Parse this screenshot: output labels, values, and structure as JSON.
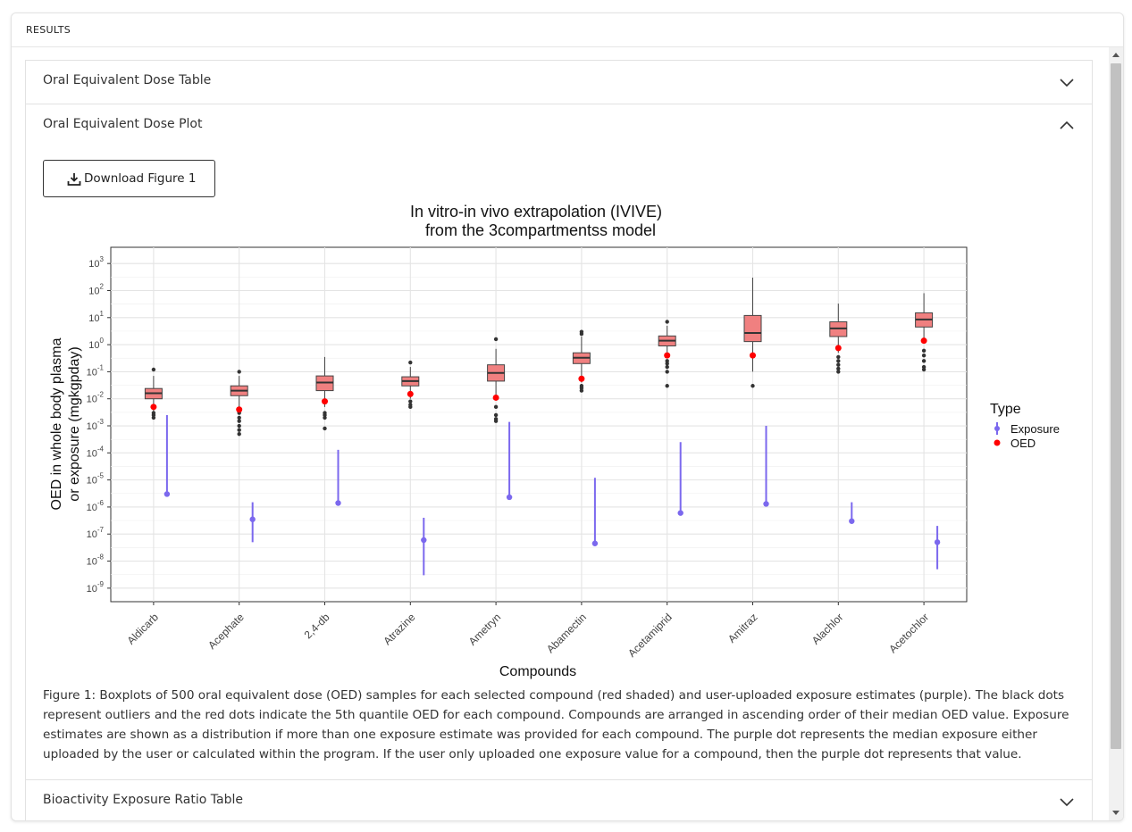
{
  "panel": {
    "title": "RESULTS"
  },
  "accordion": {
    "item1": "Oral Equivalent Dose Table",
    "item2": "Oral Equivalent Dose Plot",
    "item3": "Bioactivity Exposure Ratio Table"
  },
  "download": {
    "label": "Download Figure 1",
    "icon": "download-icon"
  },
  "caption": "Figure 1: Boxplots of 500 oral equivalent dose (OED) samples for each selected compound (red shaded) and user-uploaded exposure estimates (purple). The black dots represent outliers and the red dots indicate the 5th quantile OED for each compound. Compounds are arranged in ascending order of their median OED value. Exposure estimates are shown as a distribution if more than one exposure estimate was provided for each compound. The purple dot represents the median exposure either uploaded by the user or calculated within the program. If the user only uploaded one exposure value for a compound, then the purple dot represents that value.",
  "colors": {
    "box_fill": "#f08080",
    "oed_point": "#ff0000",
    "exposure": "#7b68ee",
    "outlier": "#333333"
  },
  "chart_data": {
    "type": "box",
    "title": "In vitro-in vivo extrapolation (IVIVE)",
    "subtitle": "from the 3compartmentss model",
    "xlabel": "Compounds",
    "ylabel": "OED in whole body plasma",
    "ylabel2": "or exposure (mgkgpday)",
    "yscale": "log10",
    "ylim_exp": [
      -9.5,
      3.6
    ],
    "ytick_exponents": [
      3,
      2,
      1,
      0,
      -1,
      -2,
      -3,
      -4,
      -5,
      -6,
      -7,
      -8,
      -9
    ],
    "grid": true,
    "legend": {
      "title": "Type",
      "position": "right",
      "entries": [
        "Exposure",
        "OED"
      ]
    },
    "categories": [
      "Aldicarb",
      "Acephate",
      "2,4-db",
      "Atrazine",
      "Ametryn",
      "Abamectin",
      "Acetamiprid",
      "Amitraz",
      "Alachlor",
      "Acetochlor"
    ],
    "boxes": [
      {
        "whisker_low": 0.003,
        "q1": 0.01,
        "median": 0.016,
        "q3": 0.024,
        "whisker_high": 0.07,
        "outliers": [
          0.12,
          0.002,
          0.0025,
          0.003
        ]
      },
      {
        "whisker_low": 0.005,
        "q1": 0.013,
        "median": 0.02,
        "q3": 0.03,
        "whisker_high": 0.07,
        "outliers": [
          0.1,
          0.0005,
          0.0007,
          0.001,
          0.0015,
          0.002,
          0.003
        ]
      },
      {
        "whisker_low": 0.005,
        "q1": 0.02,
        "median": 0.04,
        "q3": 0.07,
        "whisker_high": 0.35,
        "outliers": [
          0.0008,
          0.002,
          0.0025,
          0.003
        ]
      },
      {
        "whisker_low": 0.01,
        "q1": 0.03,
        "median": 0.045,
        "q3": 0.065,
        "whisker_high": 0.15,
        "outliers": [
          0.22,
          0.005,
          0.006,
          0.008
        ]
      },
      {
        "whisker_low": 0.01,
        "q1": 0.045,
        "median": 0.09,
        "q3": 0.18,
        "whisker_high": 0.7,
        "outliers": [
          1.6,
          0.005,
          0.0015,
          0.0018,
          0.0025
        ]
      },
      {
        "whisker_low": 0.04,
        "q1": 0.2,
        "median": 0.33,
        "q3": 0.5,
        "whisker_high": 2.0,
        "outliers": [
          2.5,
          3.0,
          0.02,
          0.025,
          0.03
        ]
      },
      {
        "whisker_low": 0.35,
        "q1": 0.9,
        "median": 1.4,
        "q3": 2.1,
        "whisker_high": 5.0,
        "outliers": [
          7.0,
          0.03,
          0.1,
          0.15,
          0.2,
          0.25
        ]
      },
      {
        "whisker_low": 0.1,
        "q1": 1.3,
        "median": 2.7,
        "q3": 12.0,
        "whisker_high": 300,
        "outliers": [
          0.03
        ]
      },
      {
        "whisker_low": 0.5,
        "q1": 2.0,
        "median": 4.0,
        "q3": 7.0,
        "whisker_high": 33,
        "outliers": [
          0.1,
          0.13,
          0.18,
          0.25,
          0.35
        ]
      },
      {
        "whisker_low": 1.5,
        "q1": 4.5,
        "median": 8.5,
        "q3": 15.0,
        "whisker_high": 80,
        "outliers": [
          0.12,
          0.15,
          0.25,
          0.4,
          0.6
        ]
      }
    ],
    "oed": [
      0.005,
      0.004,
      0.008,
      0.015,
      0.011,
      0.055,
      0.4,
      0.4,
      0.75,
      1.4
    ],
    "exposure": [
      {
        "median": 3e-06,
        "low": 3e-06,
        "high": 0.0025
      },
      {
        "median": 3.5e-07,
        "low": 5e-08,
        "high": 1.5e-06
      },
      {
        "median": 1.4e-06,
        "low": 1.4e-06,
        "high": 0.00013
      },
      {
        "median": 6e-08,
        "low": 3e-09,
        "high": 4e-07
      },
      {
        "median": 2.3e-06,
        "low": 2.3e-06,
        "high": 0.0014
      },
      {
        "median": 4.5e-08,
        "low": 4.5e-08,
        "high": 1.2e-05
      },
      {
        "median": 6e-07,
        "low": 6e-07,
        "high": 0.00025
      },
      {
        "median": 1.3e-06,
        "low": 1.3e-06,
        "high": 0.001
      },
      {
        "median": 3e-07,
        "low": 3e-07,
        "high": 1.5e-06
      },
      {
        "median": 5e-08,
        "low": 5e-09,
        "high": 2e-07
      }
    ]
  }
}
